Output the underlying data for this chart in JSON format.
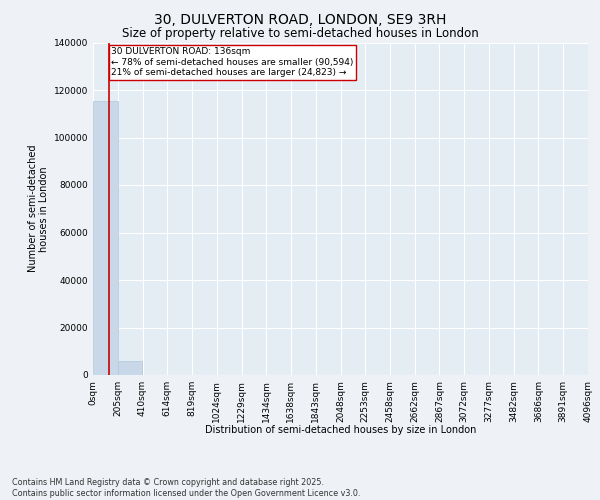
{
  "title_line1": "30, DULVERTON ROAD, LONDON, SE9 3RH",
  "title_line2": "Size of property relative to semi-detached houses in London",
  "xlabel": "Distribution of semi-detached houses by size in London",
  "ylabel": "Number of semi-detached\nhouses in London",
  "property_size": 136,
  "property_label": "30 DULVERTON ROAD: 136sqm",
  "pct_smaller": 78,
  "n_smaller": 90594,
  "pct_larger": 21,
  "n_larger": 24823,
  "bar_color": "#c8d8e8",
  "bar_edge_color": "#b0c8dc",
  "highlight_color": "#cc0000",
  "background_color": "#eef2f6",
  "plot_bg_color": "#e4ecf4",
  "grid_color": "#ffffff",
  "bin_edges": [
    0,
    205,
    410,
    614,
    819,
    1024,
    1229,
    1434,
    1638,
    1843,
    2048,
    2253,
    2458,
    2662,
    2867,
    3072,
    3277,
    3482,
    3686,
    3891,
    4096
  ],
  "bin_labels": [
    "0sqm",
    "205sqm",
    "410sqm",
    "614sqm",
    "819sqm",
    "1024sqm",
    "1229sqm",
    "1434sqm",
    "1638sqm",
    "1843sqm",
    "2048sqm",
    "2253sqm",
    "2458sqm",
    "2662sqm",
    "2867sqm",
    "3072sqm",
    "3277sqm",
    "3482sqm",
    "3686sqm",
    "3891sqm",
    "4096sqm"
  ],
  "bar_heights": [
    115417,
    5822,
    42,
    4,
    1,
    0,
    0,
    0,
    0,
    0,
    0,
    0,
    0,
    0,
    0,
    0,
    0,
    0,
    0,
    0
  ],
  "ylim": [
    0,
    140000
  ],
  "yticks": [
    0,
    20000,
    40000,
    60000,
    80000,
    100000,
    120000,
    140000
  ],
  "footnote": "Contains HM Land Registry data © Crown copyright and database right 2025.\nContains public sector information licensed under the Open Government Licence v3.0.",
  "title_fontsize": 10,
  "subtitle_fontsize": 8.5,
  "axis_fontsize": 7,
  "tick_fontsize": 6.5,
  "footnote_fontsize": 5.8,
  "annot_fontsize": 6.5
}
